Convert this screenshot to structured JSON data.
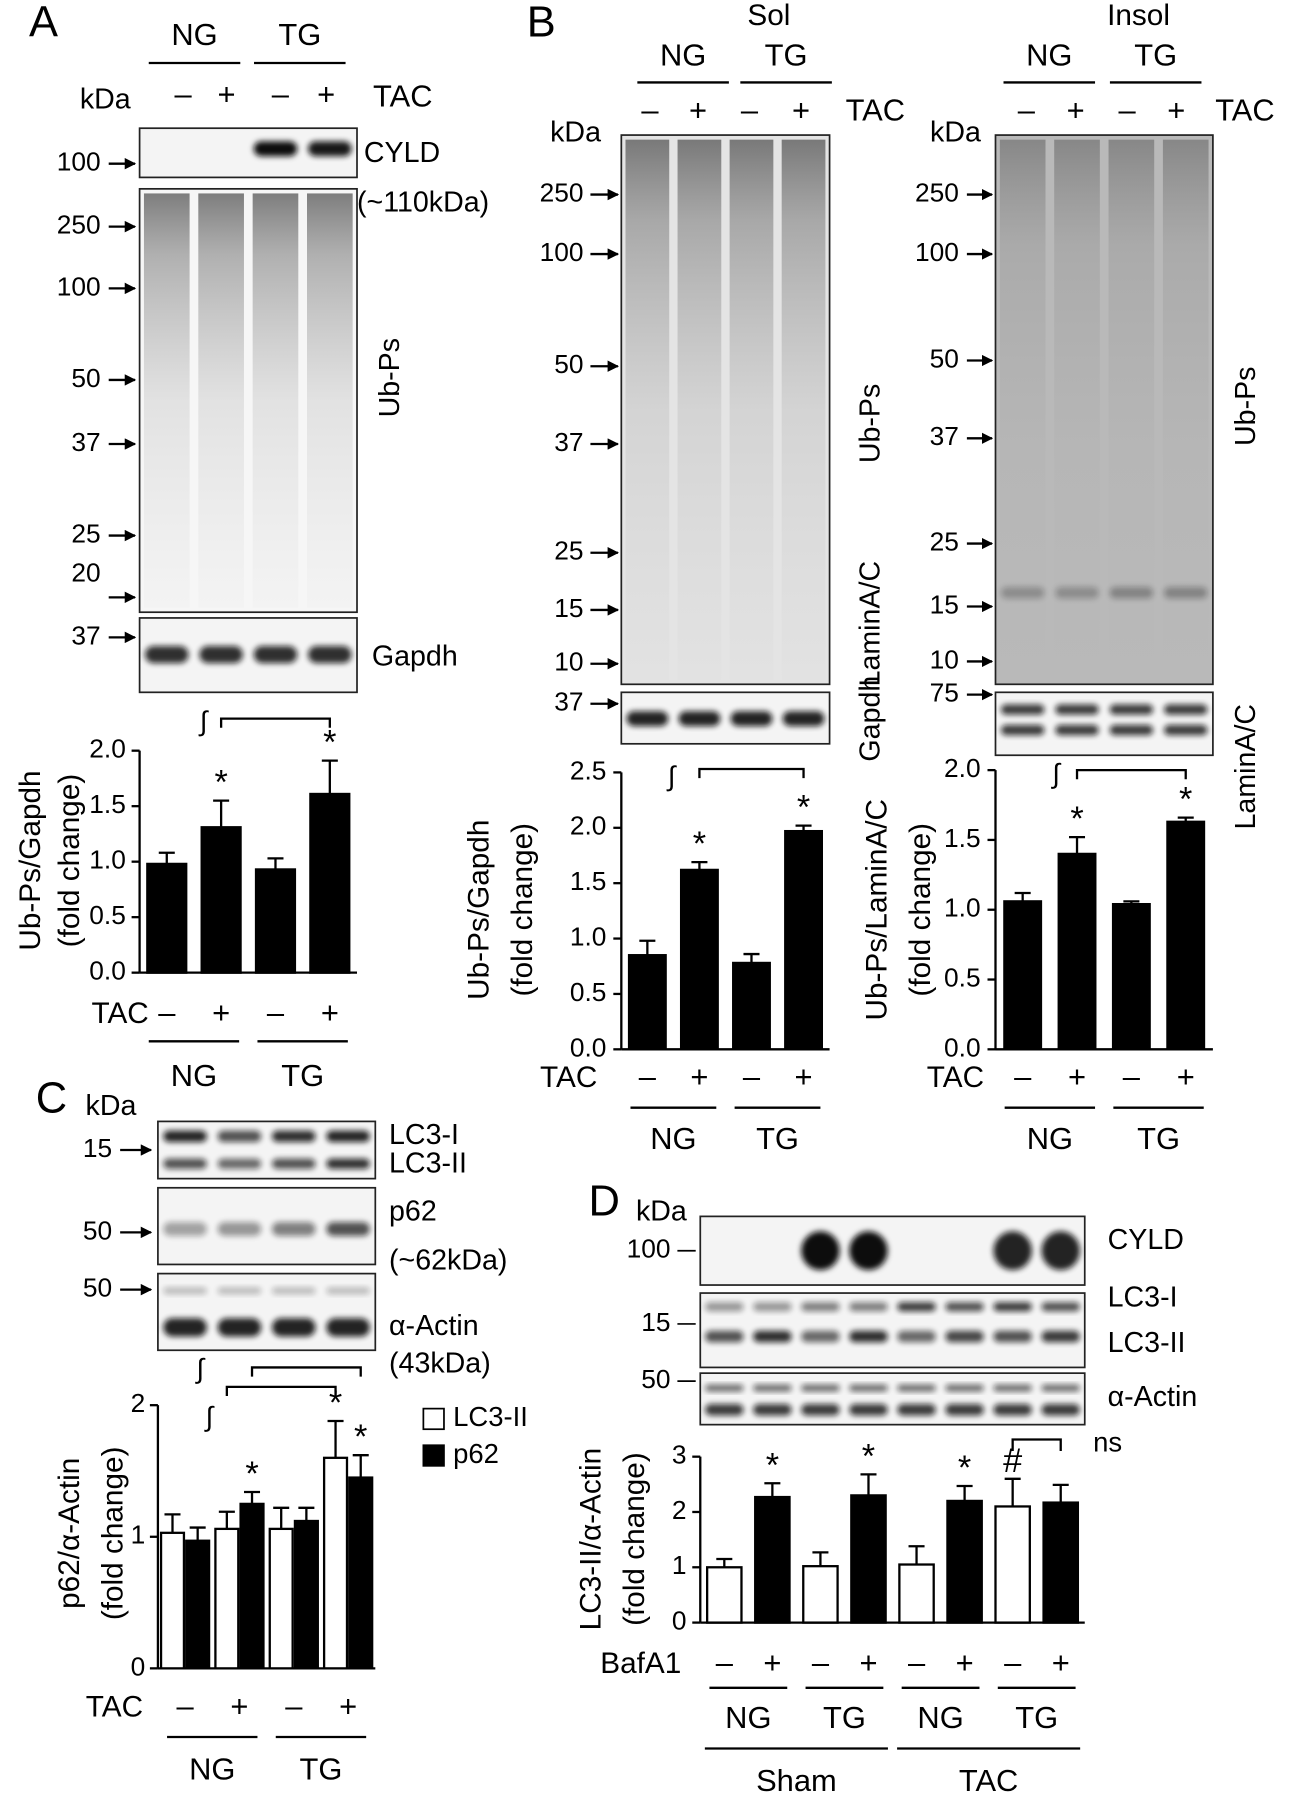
{
  "panels": {
    "A": {
      "label": "A",
      "kda": "kDa",
      "groups": [
        "NG",
        "TG"
      ],
      "signs": [
        "–",
        "+",
        "–",
        "+"
      ],
      "treatment": "TAC",
      "blots": [
        {
          "labels": [
            "CYLD",
            "(~110kDa)"
          ],
          "markers": [
            100
          ]
        },
        {
          "labels": [
            "Ub-Ps"
          ],
          "markers": [
            250,
            100,
            50,
            37,
            25,
            20
          ]
        },
        {
          "labels": [
            "Gapdh"
          ],
          "markers": [
            37
          ]
        }
      ]
    },
    "B": {
      "label": "B",
      "extra_label": "LaminA/C",
      "sol": {
        "title": "Sol",
        "kda": "kDa",
        "groups": [
          "NG",
          "TG"
        ],
        "signs": [
          "–",
          "+",
          "–",
          "+"
        ],
        "treatment": "TAC",
        "blots": [
          {
            "labels": [
              "Ub-Ps"
            ],
            "markers": [
              250,
              100,
              50,
              37,
              25,
              15,
              10
            ]
          },
          {
            "labels": [
              "Gapdh"
            ],
            "markers": [
              37
            ]
          }
        ]
      },
      "insol": {
        "title": "Insol",
        "kda": "kDa",
        "groups": [
          "NG",
          "TG"
        ],
        "signs": [
          "–",
          "+",
          "–",
          "+"
        ],
        "treatment": "TAC",
        "blots": [
          {
            "labels": [
              "Ub-Ps"
            ],
            "markers": [
              250,
              100,
              50,
              37,
              25,
              15,
              10
            ]
          },
          {
            "labels": [
              "LaminA/C"
            ],
            "markers": [
              75
            ]
          }
        ]
      }
    },
    "C": {
      "label": "C",
      "kda": "kDa",
      "blots": [
        {
          "labels": [
            "LC3-I",
            "LC3-II"
          ],
          "markers": [
            15
          ]
        },
        {
          "labels": [
            "p62",
            "(~62kDa)"
          ],
          "markers": [
            50
          ]
        },
        {
          "labels": [
            "α-Actin",
            "(43kDa)"
          ],
          "markers": [
            50
          ]
        }
      ]
    },
    "D": {
      "label": "D",
      "kda": "kDa",
      "blots": [
        {
          "labels": [
            "CYLD"
          ],
          "markers": [
            100
          ]
        },
        {
          "labels": [
            "LC3-I",
            "LC3-II"
          ],
          "markers": [
            15
          ]
        },
        {
          "labels": [
            "α-Actin"
          ],
          "markers": [
            50
          ]
        }
      ]
    }
  },
  "chart_data": [
    {
      "type": "bar",
      "y_label": [
        "Ub-Ps/Gapdh",
        "(fold change)"
      ],
      "x_label": "TAC",
      "categories": [
        "–",
        "+",
        "–",
        "+"
      ],
      "groups": [
        "NG",
        "TG"
      ],
      "values": [
        0.98,
        1.31,
        0.93,
        1.61
      ],
      "errors": [
        0.1,
        0.24,
        0.1,
        0.3
      ],
      "color": "#000000",
      "significance": [
        null,
        "*",
        null,
        "*"
      ],
      "comparison": "∫",
      "ylim": [
        0,
        2
      ],
      "yticks": [
        {
          "value": 0,
          "label": "0.0"
        },
        0.5,
        {
          "value": 1,
          "label": "1.0"
        },
        1.5,
        {
          "value": 2,
          "label": "2.0"
        }
      ]
    },
    {
      "type": "bar",
      "y_label": [
        "Ub-Ps/Gapdh",
        "(fold change)"
      ],
      "x_label": "TAC",
      "categories": [
        "–",
        "+",
        "–",
        "+"
      ],
      "groups": [
        "NG",
        "TG"
      ],
      "values": [
        0.85,
        1.62,
        0.78,
        1.97
      ],
      "errors": [
        0.13,
        0.07,
        0.08,
        0.05
      ],
      "color": "#000000",
      "significance": [
        null,
        "*",
        null,
        "*"
      ],
      "comparison": "∫",
      "ylim": [
        0,
        2.5
      ],
      "yticks": [
        {
          "value": 0,
          "label": "0.0"
        },
        0.5,
        {
          "value": 1,
          "label": "1.0"
        },
        1.5,
        {
          "value": 2,
          "label": "2.0"
        },
        2.5
      ]
    },
    {
      "type": "bar",
      "y_label": [
        "Ub-Ps/LaminA/C",
        "(fold change)"
      ],
      "x_label": "TAC",
      "categories": [
        "–",
        "+",
        "–",
        "+"
      ],
      "groups": [
        "NG",
        "TG"
      ],
      "values": [
        1.06,
        1.4,
        1.04,
        1.63
      ],
      "errors": [
        0.06,
        0.12,
        0.02,
        0.03
      ],
      "color": "#000000",
      "significance": [
        null,
        "*",
        null,
        "*"
      ],
      "comparison": "∫",
      "ylim": [
        0,
        2
      ],
      "yticks": [
        {
          "value": 0,
          "label": "0.0"
        },
        0.5,
        {
          "value": 1,
          "label": "1.0"
        },
        1.5,
        {
          "value": 2,
          "label": "2.0"
        }
      ]
    },
    {
      "type": "grouped_bar",
      "y_label": [
        "p62/α-Actin",
        "(fold change)"
      ],
      "x_label": "TAC",
      "categories": [
        "–",
        "+",
        "–",
        "+"
      ],
      "groups": [
        "NG",
        "TG"
      ],
      "series": [
        {
          "name": "LC3-II",
          "color": "#ffffff",
          "values": [
            1.03,
            1.06,
            1.06,
            1.6
          ],
          "errors": [
            0.14,
            0.13,
            0.16,
            0.28
          ],
          "significance": [
            null,
            null,
            null,
            "*"
          ],
          "comparison": "∫"
        },
        {
          "name": "p62",
          "color": "#000000",
          "values": [
            0.97,
            1.25,
            1.12,
            1.45
          ],
          "errors": [
            0.1,
            0.09,
            0.1,
            0.17
          ],
          "significance": [
            null,
            "*",
            null,
            "*"
          ],
          "comparison": "∫"
        }
      ],
      "ylim": [
        0,
        2
      ],
      "yticks": [
        0,
        1,
        2
      ]
    },
    {
      "type": "bar",
      "y_label": [
        "LC3-II/α-Actin",
        "(fold change)"
      ],
      "x_label": "BafA1",
      "categories": [
        "–",
        "+",
        "–",
        "+",
        "–",
        "+",
        "–",
        "+"
      ],
      "groups": [
        "NG",
        "TG",
        "NG",
        "TG"
      ],
      "supergroups": [
        "Sham",
        "TAC"
      ],
      "values": [
        1.0,
        2.27,
        1.02,
        2.3,
        1.05,
        2.2,
        2.1,
        2.17
      ],
      "errors": [
        0.15,
        0.25,
        0.25,
        0.38,
        0.33,
        0.27,
        0.5,
        0.32
      ],
      "colors": [
        "#ffffff",
        "#000000",
        "#ffffff",
        "#000000",
        "#ffffff",
        "#000000",
        "#ffffff",
        "#000000"
      ],
      "significance": [
        null,
        "*",
        null,
        "*",
        null,
        "*",
        "#",
        null
      ],
      "comparison": "ns",
      "ylim": [
        0,
        3
      ],
      "yticks": [
        0,
        1,
        2,
        3
      ]
    }
  ]
}
